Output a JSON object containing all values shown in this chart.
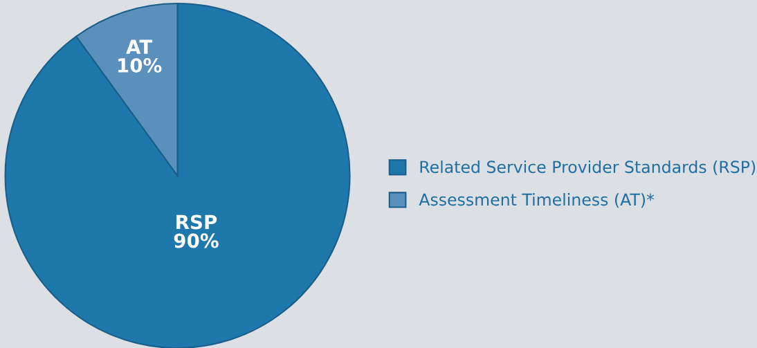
{
  "chart_data": {
    "type": "pie",
    "categories": [
      "Related Service Provider Standards (RSP)",
      "Assessment Timeliness (AT)*"
    ],
    "values": [
      90,
      10
    ],
    "colors": [
      "#1f78ab",
      "#5b8fbc"
    ],
    "value_labels": [
      "RSP\n90%",
      "AT\n10%"
    ],
    "legend": "right"
  }
}
